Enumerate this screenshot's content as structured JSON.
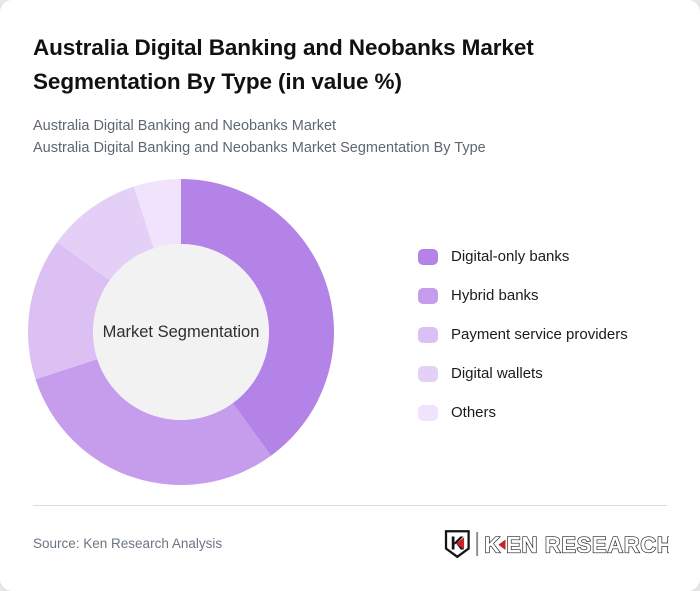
{
  "header": {
    "title": "Australia Digital Banking and Neobanks Market Segmentation By Type (in value %)",
    "subtitle_line1": "Australia Digital Banking and Neobanks Market",
    "subtitle_line2": "Australia Digital Banking and Neobanks Market Segmentation By Type"
  },
  "chart_data": {
    "type": "pie",
    "subtype": "donut",
    "center_label": "Market Segmentation",
    "categories": [
      "Digital-only banks",
      "Hybrid banks",
      "Payment service providers",
      "Digital wallets",
      "Others"
    ],
    "values": [
      40,
      30,
      15,
      10,
      5
    ],
    "unit": "%",
    "colors": [
      "#b383e8",
      "#c69ced",
      "#dcc0f4",
      "#e4d0f7",
      "#f0e3fb"
    ],
    "hole_color": "#f2f2f2",
    "start_angle_deg": 0,
    "direction": "clockwise",
    "inner_radius_ratio": 0.575,
    "legend_position": "right",
    "data_labels": "none"
  },
  "footer": {
    "source": "Source: Ken Research Analysis",
    "logo": {
      "mark_letter": "K",
      "brand_first_letter": "K",
      "brand_rest": "EN RESEARCH",
      "accent_color": "#c4252b"
    }
  },
  "colors": {
    "card_bg": "#ffffff",
    "page_bg": "#e8e8e8",
    "title_text": "#111111",
    "subtitle_text": "#5d6770",
    "legend_text": "#1b1b1b",
    "divider": "#dcdcdc",
    "source_text": "#6b7683"
  }
}
